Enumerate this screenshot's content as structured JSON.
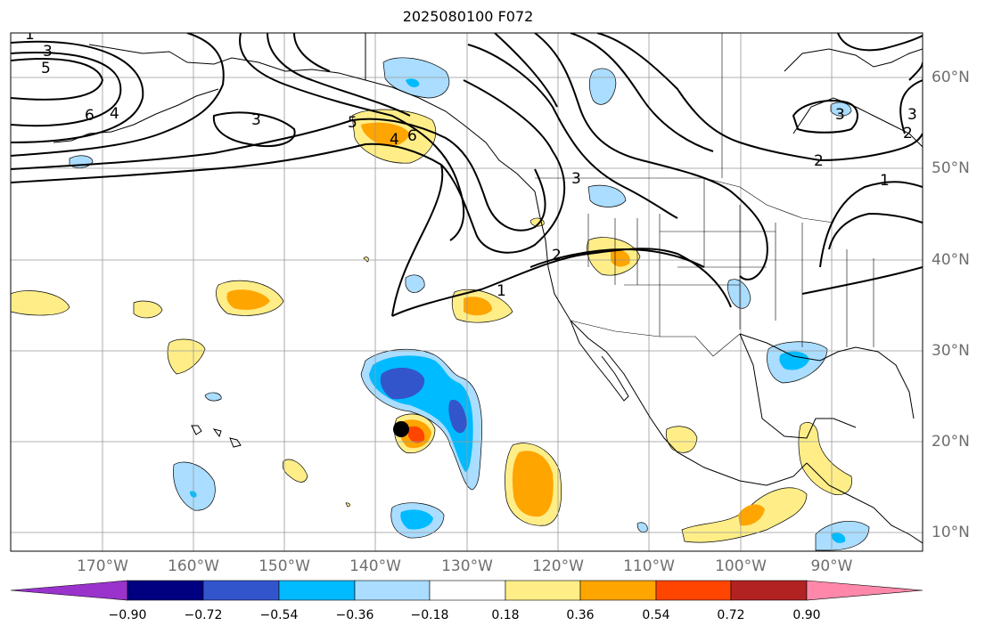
{
  "title": "2025080100 F072",
  "lon_labels": [
    "170°W",
    "160°W",
    "150°W",
    "140°W",
    "130°W",
    "120°W",
    "110°W",
    "100°W",
    "90°W"
  ],
  "lat_labels": [
    "60°N",
    "50°N",
    "40°N",
    "30°N",
    "20°N",
    "10°N"
  ],
  "colorbar": {
    "ticks": [
      "−0.90",
      "−0.72",
      "−0.54",
      "−0.36",
      "−0.18",
      "0.18",
      "0.36",
      "0.54",
      "0.72",
      "0.90"
    ],
    "colors": [
      "#9933cc",
      "#000080",
      "#3355cc",
      "#00bbff",
      "#aaddff",
      "#ffffff",
      "#ffee88",
      "#ffa500",
      "#ff4500",
      "#b22222",
      "#ff88aa"
    ]
  },
  "contour_labels": [
    "3",
    "5",
    "6",
    "4",
    "3",
    "5",
    "4",
    "6",
    "3",
    "2",
    "1",
    "2",
    "1",
    "3",
    "3",
    "2",
    "1"
  ],
  "marker": "storm-center-dot"
}
